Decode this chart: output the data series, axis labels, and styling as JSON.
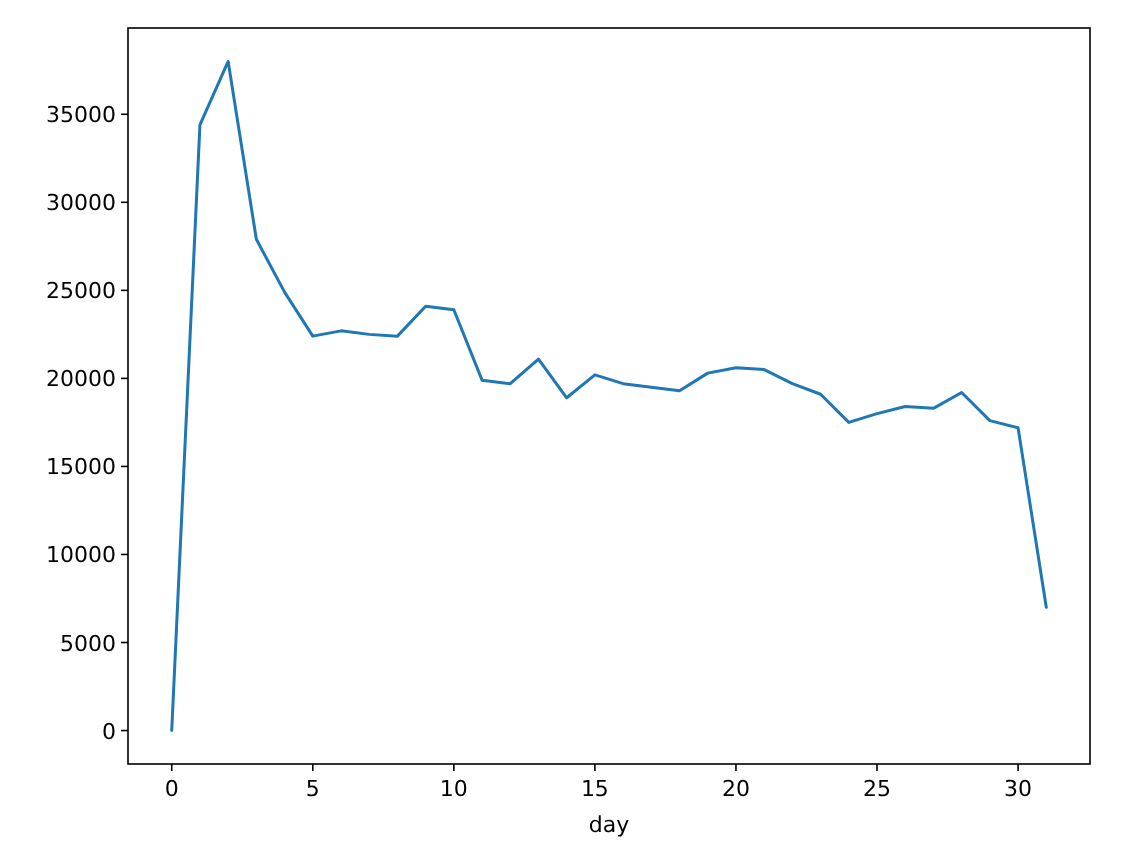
{
  "chart_data": {
    "type": "line",
    "xlabel": "day",
    "x": [
      0,
      1,
      2,
      3,
      4,
      5,
      6,
      7,
      8,
      9,
      10,
      11,
      12,
      13,
      14,
      15,
      16,
      17,
      18,
      19,
      20,
      21,
      22,
      23,
      24,
      25,
      26,
      27,
      28,
      29,
      30,
      31
    ],
    "series": [
      {
        "color": "#1f77b4",
        "values": [
          0,
          34400,
          38000,
          27900,
          24900,
          22400,
          22700,
          22500,
          22400,
          24100,
          23900,
          19900,
          19700,
          21100,
          18900,
          20200,
          19700,
          19500,
          19300,
          20300,
          20600,
          20500,
          19700,
          19100,
          17500,
          18000,
          18400,
          18300,
          19200,
          17600,
          17200,
          7000
        ]
      }
    ],
    "xlim": [
      -1.55,
      32.55
    ],
    "ylim": [
      -1900,
      39900
    ],
    "xticks": [
      0,
      5,
      10,
      15,
      20,
      25,
      30
    ],
    "yticks": [
      0,
      5000,
      10000,
      15000,
      20000,
      25000,
      30000,
      35000
    ],
    "marker": "none",
    "line_style": "solid"
  }
}
